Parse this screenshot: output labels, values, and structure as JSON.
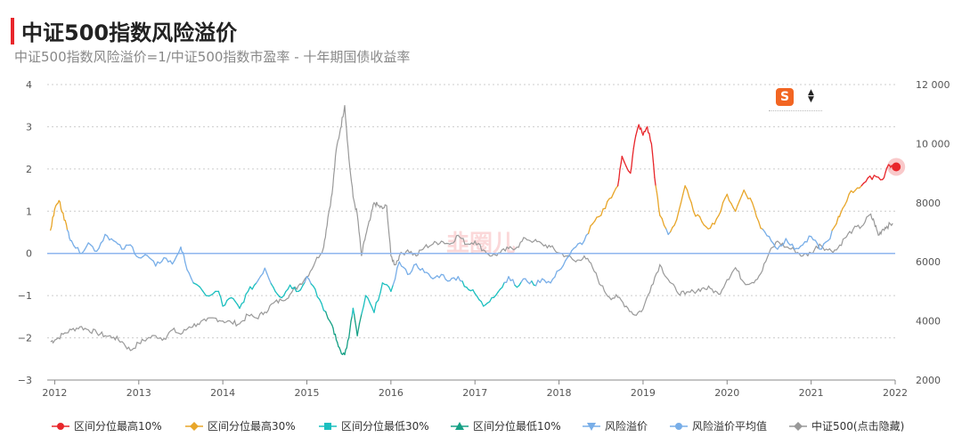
{
  "header": {
    "title": "中证500指数风险溢价",
    "subtitle": "中证500指数风险溢价=1/中证500指数市盈率 - 十年期国债收益率"
  },
  "watermark": "韭圈儿",
  "colors": {
    "top10": "#e8262b",
    "top30": "#e8a62a",
    "low30": "#1bbfbf",
    "low10": "#16a085",
    "premium": "#78aee8",
    "avg_line": "#8fb6ef",
    "index": "#999999",
    "grid": "#cccccc"
  },
  "chart_data": {
    "type": "line",
    "x_ticks": [
      "2012",
      "2013",
      "2014",
      "2015",
      "2016",
      "2017",
      "2018",
      "2019",
      "2020",
      "2021",
      "2022"
    ],
    "y_left": {
      "range": [
        -3,
        4
      ],
      "ticks": [
        "4",
        "3",
        "2",
        "1",
        "0",
        "−1",
        "−2",
        "−3"
      ]
    },
    "y_right": {
      "range": [
        2000,
        12000
      ],
      "ticks": [
        "12 000",
        "10 000",
        "8000",
        "6000",
        "4000",
        "2000"
      ]
    },
    "legend_position": "bottom",
    "legend": [
      {
        "label": "区间分位最高10%",
        "marker": "circle",
        "color": "#e8262b"
      },
      {
        "label": "区间分位最高30%",
        "marker": "diamond",
        "color": "#e8a62a"
      },
      {
        "label": "区间分位最低30%",
        "marker": "square",
        "color": "#1bbfbf"
      },
      {
        "label": "区间分位最低10%",
        "marker": "triangle",
        "color": "#16a085"
      },
      {
        "label": "风险溢价",
        "marker": "triangle-down",
        "color": "#78aee8"
      },
      {
        "label": "风险溢价平均值",
        "marker": "circle",
        "color": "#78aee8"
      },
      {
        "label": "中证500(点击隐藏)",
        "marker": "diamond",
        "color": "#999999"
      }
    ],
    "average_premium": 0,
    "risk_premium": [
      [
        2011.95,
        0.55
      ],
      [
        2012.0,
        1.05
      ],
      [
        2012.05,
        1.25
      ],
      [
        2012.1,
        0.95
      ],
      [
        2012.15,
        0.55
      ],
      [
        2012.2,
        0.3
      ],
      [
        2012.3,
        0.0
      ],
      [
        2012.4,
        0.25
      ],
      [
        2012.5,
        0.05
      ],
      [
        2012.6,
        0.45
      ],
      [
        2012.7,
        0.3
      ],
      [
        2012.8,
        0.1
      ],
      [
        2012.9,
        0.2
      ],
      [
        2013.0,
        -0.1
      ],
      [
        2013.1,
        -0.05
      ],
      [
        2013.2,
        -0.3
      ],
      [
        2013.3,
        -0.1
      ],
      [
        2013.4,
        -0.25
      ],
      [
        2013.5,
        0.15
      ],
      [
        2013.55,
        -0.2
      ],
      [
        2013.65,
        -0.7
      ],
      [
        2013.8,
        -1.0
      ],
      [
        2013.95,
        -0.9
      ],
      [
        2014.0,
        -1.25
      ],
      [
        2014.1,
        -1.05
      ],
      [
        2014.2,
        -1.3
      ],
      [
        2014.3,
        -0.9
      ],
      [
        2014.4,
        -0.7
      ],
      [
        2014.5,
        -0.35
      ],
      [
        2014.6,
        -0.8
      ],
      [
        2014.7,
        -1.05
      ],
      [
        2014.8,
        -0.75
      ],
      [
        2014.9,
        -0.9
      ],
      [
        2015.0,
        -0.55
      ],
      [
        2015.1,
        -0.85
      ],
      [
        2015.2,
        -1.35
      ],
      [
        2015.3,
        -1.7
      ],
      [
        2015.35,
        -2.05
      ],
      [
        2015.4,
        -2.3
      ],
      [
        2015.45,
        -2.4
      ],
      [
        2015.5,
        -2.0
      ],
      [
        2015.55,
        -1.3
      ],
      [
        2015.6,
        -1.95
      ],
      [
        2015.7,
        -1.0
      ],
      [
        2015.8,
        -1.4
      ],
      [
        2015.9,
        -0.7
      ],
      [
        2016.0,
        -0.9
      ],
      [
        2016.1,
        -0.2
      ],
      [
        2016.2,
        -0.5
      ],
      [
        2016.3,
        -0.25
      ],
      [
        2016.4,
        -0.45
      ],
      [
        2016.5,
        -0.6
      ],
      [
        2016.6,
        -0.5
      ],
      [
        2016.7,
        -0.65
      ],
      [
        2016.8,
        -0.55
      ],
      [
        2016.9,
        -0.8
      ],
      [
        2017.0,
        -0.95
      ],
      [
        2017.1,
        -1.25
      ],
      [
        2017.2,
        -1.05
      ],
      [
        2017.3,
        -0.85
      ],
      [
        2017.4,
        -0.55
      ],
      [
        2017.5,
        -0.8
      ],
      [
        2017.6,
        -0.6
      ],
      [
        2017.7,
        -0.75
      ],
      [
        2017.8,
        -0.6
      ],
      [
        2017.9,
        -0.7
      ],
      [
        2018.0,
        -0.4
      ],
      [
        2018.1,
        -0.1
      ],
      [
        2018.2,
        0.15
      ],
      [
        2018.3,
        0.3
      ],
      [
        2018.4,
        0.7
      ],
      [
        2018.5,
        0.9
      ],
      [
        2018.6,
        1.3
      ],
      [
        2018.7,
        1.6
      ],
      [
        2018.75,
        2.3
      ],
      [
        2018.85,
        1.9
      ],
      [
        2018.9,
        2.65
      ],
      [
        2018.95,
        3.05
      ],
      [
        2019.0,
        2.8
      ],
      [
        2019.05,
        3.0
      ],
      [
        2019.1,
        2.6
      ],
      [
        2019.15,
        1.6
      ],
      [
        2019.2,
        0.9
      ],
      [
        2019.3,
        0.45
      ],
      [
        2019.4,
        0.8
      ],
      [
        2019.5,
        1.6
      ],
      [
        2019.6,
        1.0
      ],
      [
        2019.7,
        0.75
      ],
      [
        2019.8,
        0.6
      ],
      [
        2019.9,
        0.9
      ],
      [
        2020.0,
        1.4
      ],
      [
        2020.1,
        1.0
      ],
      [
        2020.2,
        1.5
      ],
      [
        2020.3,
        1.2
      ],
      [
        2020.4,
        0.6
      ],
      [
        2020.5,
        0.4
      ],
      [
        2020.6,
        0.1
      ],
      [
        2020.7,
        0.35
      ],
      [
        2020.8,
        0.1
      ],
      [
        2020.9,
        0.2
      ],
      [
        2021.0,
        0.4
      ],
      [
        2021.1,
        0.1
      ],
      [
        2021.2,
        0.3
      ],
      [
        2021.3,
        0.7
      ],
      [
        2021.35,
        0.95
      ],
      [
        2021.45,
        1.4
      ],
      [
        2021.55,
        1.55
      ],
      [
        2021.65,
        1.7
      ],
      [
        2021.75,
        1.85
      ],
      [
        2021.85,
        1.75
      ],
      [
        2021.92,
        2.1
      ],
      [
        2021.97,
        2.05
      ]
    ],
    "index_500": [
      [
        2011.95,
        3300
      ],
      [
        2012.0,
        3350
      ],
      [
        2012.1,
        3550
      ],
      [
        2012.2,
        3700
      ],
      [
        2012.3,
        3800
      ],
      [
        2012.4,
        3700
      ],
      [
        2012.5,
        3600
      ],
      [
        2012.6,
        3500
      ],
      [
        2012.7,
        3450
      ],
      [
        2012.8,
        3300
      ],
      [
        2012.9,
        3000
      ],
      [
        2013.0,
        3250
      ],
      [
        2013.1,
        3400
      ],
      [
        2013.2,
        3500
      ],
      [
        2013.3,
        3400
      ],
      [
        2013.4,
        3700
      ],
      [
        2013.5,
        3550
      ],
      [
        2013.6,
        3800
      ],
      [
        2013.7,
        3900
      ],
      [
        2013.8,
        4000
      ],
      [
        2013.9,
        4100
      ],
      [
        2014.0,
        4000
      ],
      [
        2014.1,
        3950
      ],
      [
        2014.2,
        3900
      ],
      [
        2014.3,
        4200
      ],
      [
        2014.4,
        4100
      ],
      [
        2014.5,
        4300
      ],
      [
        2014.6,
        4600
      ],
      [
        2014.7,
        4700
      ],
      [
        2014.8,
        4900
      ],
      [
        2014.9,
        5200
      ],
      [
        2015.0,
        5500
      ],
      [
        2015.1,
        6000
      ],
      [
        2015.2,
        6500
      ],
      [
        2015.25,
        7500
      ],
      [
        2015.3,
        8300
      ],
      [
        2015.35,
        9800
      ],
      [
        2015.4,
        10500
      ],
      [
        2015.45,
        11300
      ],
      [
        2015.5,
        9500
      ],
      [
        2015.55,
        8200
      ],
      [
        2015.6,
        7600
      ],
      [
        2015.65,
        6200
      ],
      [
        2015.7,
        6900
      ],
      [
        2015.75,
        7400
      ],
      [
        2015.8,
        8000
      ],
      [
        2015.85,
        7900
      ],
      [
        2015.9,
        7800
      ],
      [
        2015.95,
        7900
      ],
      [
        2016.0,
        6200
      ],
      [
        2016.05,
        5900
      ],
      [
        2016.1,
        6200
      ],
      [
        2016.2,
        6400
      ],
      [
        2016.3,
        6200
      ],
      [
        2016.4,
        6500
      ],
      [
        2016.5,
        6600
      ],
      [
        2016.6,
        6700
      ],
      [
        2016.7,
        6600
      ],
      [
        2016.8,
        6900
      ],
      [
        2016.9,
        6600
      ],
      [
        2017.0,
        6700
      ],
      [
        2017.1,
        6400
      ],
      [
        2017.2,
        6200
      ],
      [
        2017.3,
        6300
      ],
      [
        2017.4,
        6450
      ],
      [
        2017.5,
        6500
      ],
      [
        2017.6,
        6800
      ],
      [
        2017.7,
        6700
      ],
      [
        2017.8,
        6600
      ],
      [
        2017.9,
        6500
      ],
      [
        2018.0,
        6300
      ],
      [
        2018.1,
        6200
      ],
      [
        2018.2,
        6000
      ],
      [
        2018.3,
        6200
      ],
      [
        2018.4,
        5800
      ],
      [
        2018.5,
        5200
      ],
      [
        2018.6,
        4800
      ],
      [
        2018.7,
        4800
      ],
      [
        2018.8,
        4500
      ],
      [
        2018.9,
        4200
      ],
      [
        2019.0,
        4400
      ],
      [
        2019.1,
        5200
      ],
      [
        2019.2,
        5900
      ],
      [
        2019.3,
        5400
      ],
      [
        2019.4,
        5000
      ],
      [
        2019.5,
        4900
      ],
      [
        2019.6,
        5000
      ],
      [
        2019.7,
        5100
      ],
      [
        2019.8,
        5100
      ],
      [
        2019.9,
        4900
      ],
      [
        2020.0,
        5400
      ],
      [
        2020.1,
        5800
      ],
      [
        2020.2,
        5300
      ],
      [
        2020.3,
        5300
      ],
      [
        2020.4,
        5600
      ],
      [
        2020.5,
        6300
      ],
      [
        2020.6,
        6700
      ],
      [
        2020.7,
        6500
      ],
      [
        2020.8,
        6400
      ],
      [
        2020.9,
        6200
      ],
      [
        2021.0,
        6300
      ],
      [
        2021.1,
        6600
      ],
      [
        2021.2,
        6400
      ],
      [
        2021.3,
        6400
      ],
      [
        2021.4,
        6800
      ],
      [
        2021.5,
        7100
      ],
      [
        2021.6,
        7200
      ],
      [
        2021.7,
        7600
      ],
      [
        2021.75,
        7350
      ],
      [
        2021.8,
        6900
      ],
      [
        2021.85,
        7100
      ],
      [
        2021.9,
        7200
      ],
      [
        2021.97,
        7300
      ]
    ]
  }
}
